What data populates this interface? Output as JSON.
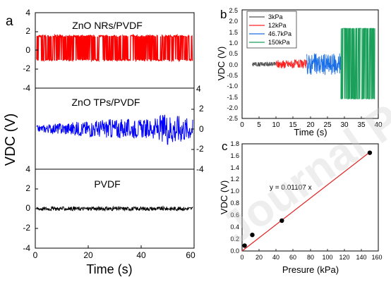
{
  "figure": {
    "watermark": "Journal Pre-proof",
    "panel_a": {
      "letter": "a",
      "ylabel": "VDC (V)",
      "xlabel": "Time (s)",
      "x_ticks": [
        "0",
        "20",
        "40",
        "60"
      ],
      "sub_titles": [
        "ZnO NRs/PVDF",
        "ZnO TPs/PVDF",
        "PVDF"
      ],
      "top_y_ticks": [
        "4",
        "2",
        "0",
        "-2",
        "-4"
      ],
      "mid_y_ticks": [
        "4",
        "2",
        "0",
        "-2",
        "-4"
      ],
      "bot_y_ticks": [
        "4",
        "2",
        "0",
        "-2",
        "-4"
      ]
    },
    "panel_b": {
      "letter": "b",
      "ylabel": "VDC (V)",
      "xlabel": "Time (s)",
      "x_ticks": [
        "0",
        "5",
        "10",
        "15",
        "20",
        "25",
        "30",
        "35",
        "40"
      ],
      "y_ticks": [
        "2.5",
        "2.0",
        "1.5",
        "1.0",
        "0.5",
        "0.0",
        "-0.5",
        "-1.0",
        "-1.5",
        "-2.0",
        "-2.5"
      ]
    },
    "panel_c": {
      "letter": "c",
      "ylabel": "VDC (V)",
      "xlabel": "Presure (kPa)",
      "annotation": "y = 0.01107 x",
      "x_ticks": [
        "0",
        "20",
        "40",
        "60",
        "80",
        "100",
        "120",
        "140",
        "160"
      ],
      "y_ticks": [
        "0.0",
        "0.2",
        "0.4",
        "0.6",
        "0.8",
        "1.0",
        "1.2",
        "1.4",
        "1.6",
        "1.8"
      ]
    }
  },
  "chart_data": [
    {
      "type": "line",
      "panel": "a",
      "xlabel": "Time (s)",
      "ylabel": "VDC (V)",
      "xlim": [
        0,
        60
      ],
      "subplots": [
        {
          "name": "ZnO NRs/PVDF",
          "ylim": [
            -4,
            4
          ],
          "color": "#ff0000",
          "amplitude_v": [
            -1.1,
            1.6
          ],
          "time_range_s": [
            0,
            60
          ]
        },
        {
          "name": "ZnO TPs/PVDF",
          "ylim": [
            -4,
            4
          ],
          "color": "#0000ff",
          "envelope": [
            {
              "t": 0,
              "amp": 0.3
            },
            {
              "t": 10,
              "amp": 0.6
            },
            {
              "t": 20,
              "amp": 0.8
            },
            {
              "t": 30,
              "amp": 1.0
            },
            {
              "t": 40,
              "amp": 0.9
            },
            {
              "t": 45,
              "amp": 1.0
            },
            {
              "t": 50,
              "amp": 1.6
            },
            {
              "t": 55,
              "amp": 1.4
            },
            {
              "t": 60,
              "amp": 1.0
            }
          ]
        },
        {
          "name": "PVDF",
          "ylim": [
            -4,
            4
          ],
          "color": "#000000",
          "amplitude_v": [
            -0.2,
            0.2
          ],
          "time_range_s": [
            0,
            60
          ]
        }
      ]
    },
    {
      "type": "line",
      "panel": "b",
      "xlabel": "Time (s)",
      "ylabel": "VDC (V)",
      "xlim": [
        0,
        40
      ],
      "ylim": [
        -2.5,
        2.5
      ],
      "legend": "top-left",
      "series": [
        {
          "name": "3kPa",
          "color": "#555555",
          "time_range_s": [
            3,
            10
          ],
          "amplitude_v": [
            -0.1,
            0.1
          ]
        },
        {
          "name": "12kPa",
          "color": "#ff2020",
          "time_range_s": [
            10,
            19
          ],
          "amplitude_v": [
            -0.2,
            0.2
          ]
        },
        {
          "name": "46.7kPa",
          "color": "#1a6ee8",
          "time_range_s": [
            19,
            29
          ],
          "amplitude_v": [
            -0.5,
            0.5
          ]
        },
        {
          "name": "150kPa",
          "color": "#1aa05a",
          "time_range_s": [
            29,
            39
          ],
          "amplitude_v": [
            -1.6,
            1.65
          ]
        }
      ]
    },
    {
      "type": "scatter",
      "panel": "c",
      "xlabel": "Presure (kPa)",
      "ylabel": "VDC (V)",
      "xlim": [
        0,
        160
      ],
      "ylim": [
        0,
        1.8
      ],
      "points": [
        {
          "x": 3,
          "y": 0.09
        },
        {
          "x": 12,
          "y": 0.27
        },
        {
          "x": 46.7,
          "y": 0.51
        },
        {
          "x": 150,
          "y": 1.65
        }
      ],
      "fit": {
        "label": "y = 0.01107 x",
        "slope": 0.01107,
        "intercept": 0,
        "color": "#e02020"
      }
    }
  ]
}
